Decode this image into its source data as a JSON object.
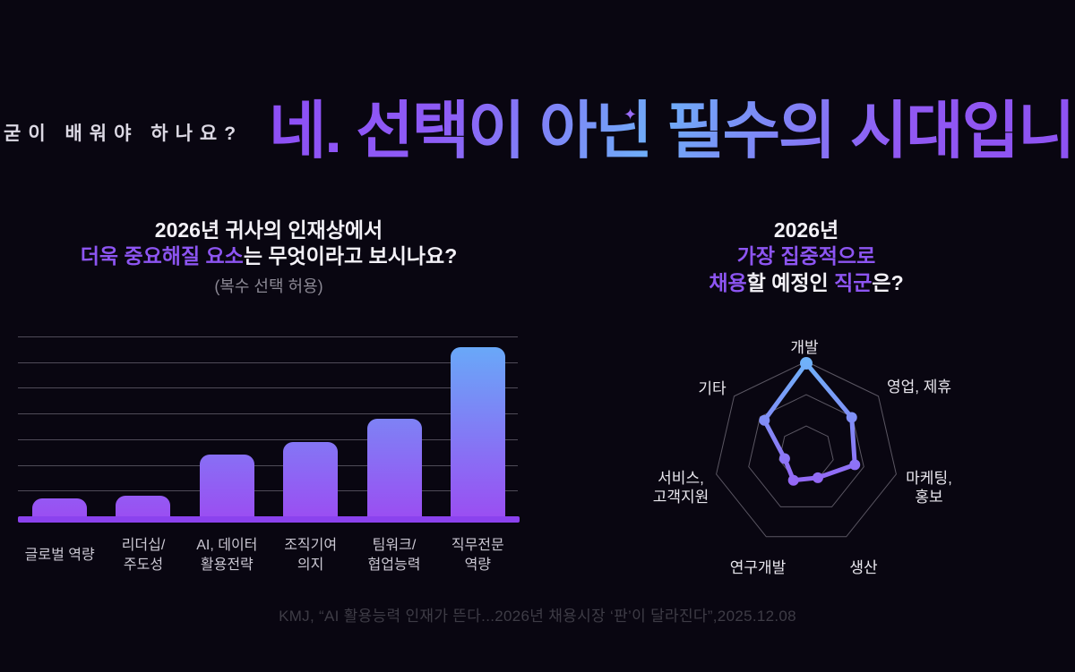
{
  "page": {
    "background": "#090611"
  },
  "header": {
    "kicker": "굳이 배워야 하나요?",
    "title": "네. 선택이 아닌 필수의 시대입니다!",
    "sparkle_icon": "✦",
    "title_gradient": [
      "#8d4ef5",
      "#6fadf8",
      "#8d52f2"
    ]
  },
  "left_panel": {
    "title_line1": "2026년 귀사의 인재상에서",
    "title_line2_segments": [
      {
        "text": "더욱 중요해질 요소",
        "accent": true
      },
      {
        "text": "는 무엇이라고 보시나요?",
        "accent": false
      }
    ],
    "subtitle": "(복수 선택 허용)"
  },
  "right_panel": {
    "title_line1": "2026년",
    "title_line2_segments": [
      {
        "text": "가장 집중적으로",
        "accent": true
      }
    ],
    "title_line3_segments": [
      {
        "text": "채용",
        "accent": true
      },
      {
        "text": "할 예정인 ",
        "accent": false
      },
      {
        "text": "직군",
        "accent": true
      },
      {
        "text": "은?",
        "accent": false
      }
    ]
  },
  "chart_data": [
    {
      "type": "bar",
      "title": "2026년 귀사의 인재상에서 더욱 중요해질 요소는 무엇이라고 보시나요? (복수 선택 허용)",
      "categories": [
        "글로벌 역량",
        "리더십/\n주도성",
        "AI, 데이터\n활용전략",
        "조직기여\n의지",
        "팀워크/\n협업능력",
        "직무전문\n역량"
      ],
      "values": [
        7,
        8,
        24,
        29,
        38,
        66
      ],
      "value_unit": "percent-estimated-from-bar-heights",
      "xlabel": "",
      "ylabel": "",
      "ylim": [
        0,
        70
      ],
      "gridline_step": 10,
      "grid": true,
      "legend": "none",
      "bar_color_bottom": "#9a4ff2",
      "bar_color_top_max": "#69a8f8",
      "baseline_color": "#8b42ee"
    },
    {
      "type": "radar",
      "title": "2026년 가장 집중적으로 채용할 예정인 직군은?",
      "categories": [
        "개발",
        "영업, 제휴",
        "마케팅,\n홍보",
        "생산",
        "연구개발",
        "서비스,\n고객지원",
        "기타"
      ],
      "values_pct_of_max": [
        98,
        63,
        54,
        29,
        32,
        24,
        58
      ],
      "rings_pct": [
        100,
        64,
        30
      ],
      "grid_color": "#5b5763",
      "stroke_gradient": [
        "#6fb2f9",
        "#9a5af4"
      ],
      "legend": "none"
    }
  ],
  "footer": {
    "citation": "KMJ, “AI 활용능력 인재가 뜬다...2026년 채용시장 ‘판’이 달라진다”,2025.12.08"
  }
}
